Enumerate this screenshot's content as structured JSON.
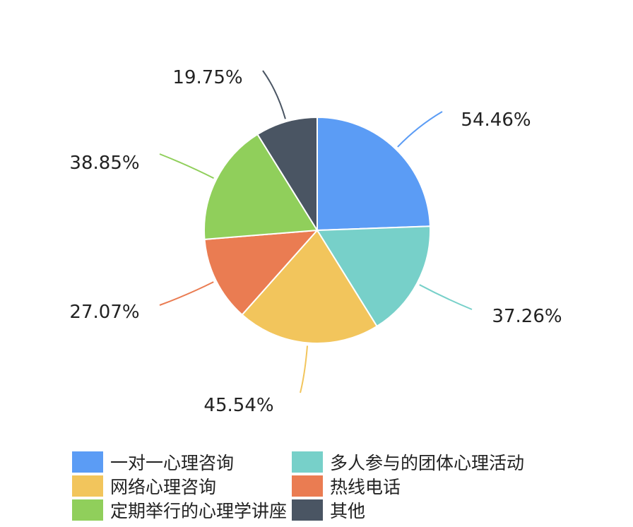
{
  "chart_data": {
    "type": "pie",
    "categories": [
      "一对一心理咨询",
      "多人参与的团体心理活动",
      "网络心理咨询",
      "热线电话",
      "定期举行的心理学讲座",
      "其他"
    ],
    "values": [
      54.46,
      37.26,
      45.54,
      27.07,
      38.85,
      19.75
    ],
    "data_labels": [
      "54.46%",
      "37.26%",
      "45.54%",
      "27.07%",
      "38.85%",
      "19.75%"
    ],
    "colors": [
      "#5b9cf5",
      "#77d0c9",
      "#f2c55c",
      "#ea7c52",
      "#90cf5b",
      "#4a5563"
    ],
    "legend": {
      "position": "bottom",
      "items": [
        "一对一心理咨询",
        "多人参与的团体心理活动",
        "网络心理咨询",
        "热线电话",
        "定期举行的心理学讲座",
        "其他"
      ]
    },
    "start_angle": "12 o'clock",
    "direction": "clockwise"
  }
}
